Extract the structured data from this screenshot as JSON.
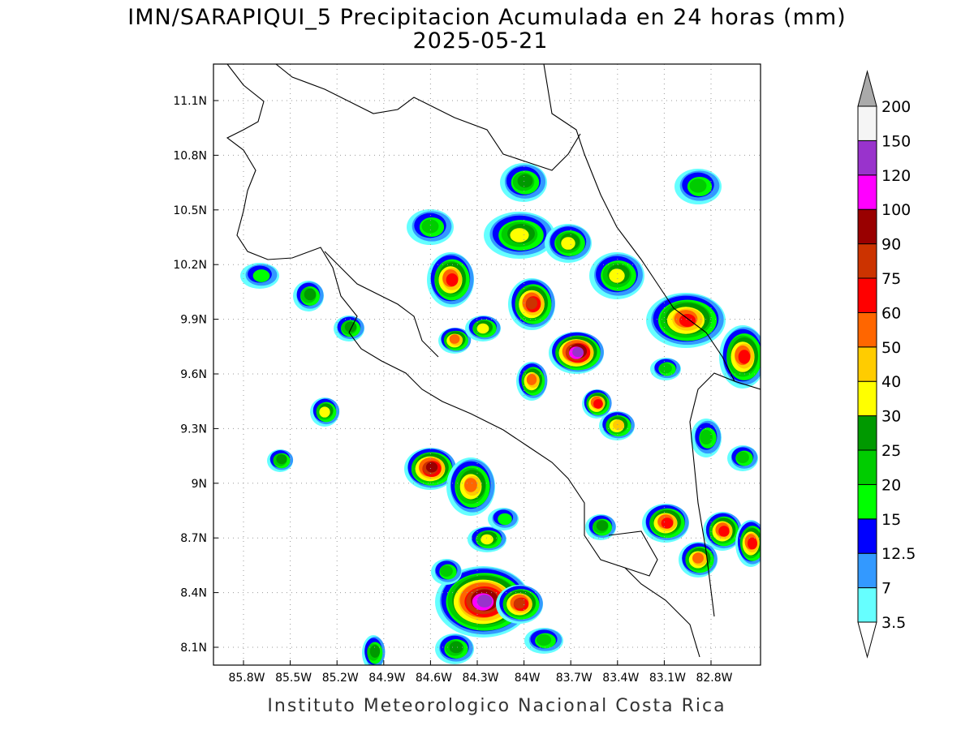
{
  "header": {
    "title": "IMN/SARAPIQUI_5 Precipitacion Acumulada en 24 horas (mm)",
    "subtitle": "2025-05-21"
  },
  "map": {
    "lat_ticks": [
      "11.1N",
      "10.8N",
      "10.5N",
      "10.2N",
      "9.9N",
      "9.6N",
      "9.3N",
      "9N",
      "8.7N",
      "8.4N",
      "8.1N"
    ],
    "lon_ticks": [
      "85.8W",
      "85.5W",
      "85.2W",
      "84.9W",
      "84.6W",
      "84.3W",
      "84W",
      "83.7W",
      "83.4W",
      "83.1W",
      "82.8W"
    ]
  },
  "colorbar": {
    "levels": [
      "3.5",
      "7",
      "12.5",
      "15",
      "20",
      "25",
      "30",
      "40",
      "50",
      "60",
      "75",
      "90",
      "100",
      "120",
      "150",
      "200"
    ],
    "colors": [
      "#66ffff",
      "#3399ff",
      "#0000ff",
      "#00ff00",
      "#00cc00",
      "#009900",
      "#ffff00",
      "#ffcc00",
      "#ff6600",
      "#ff0000",
      "#cc3300",
      "#990000",
      "#ff00ff",
      "#9933cc",
      "#f5f5f5"
    ],
    "over_color": "#aaaaaa",
    "under_color": "#ffffff"
  },
  "footer": "Instituto Meteorologico Nacional Costa Rica"
}
